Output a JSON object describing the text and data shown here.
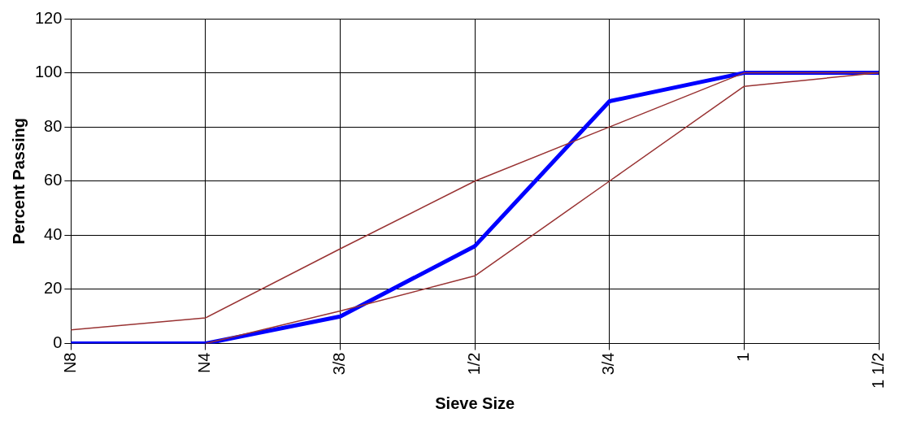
{
  "chart_data": {
    "type": "line",
    "xlabel": "Sieve Size",
    "ylabel": "Percent Passing",
    "categories": [
      "N8",
      "N4",
      "3/8",
      "1/2",
      "3/4",
      "1",
      "1 1/2"
    ],
    "series": [
      {
        "color": "#993333",
        "values": [
          5,
          9.5,
          35,
          60,
          80,
          100,
          100
        ]
      },
      {
        "color": "#993333",
        "values": [
          null,
          0,
          12,
          25,
          60,
          95,
          100
        ]
      },
      {
        "color": "#0000ff",
        "values": [
          0,
          0,
          10,
          36,
          89.5,
          100,
          100
        ]
      }
    ],
    "ylim": [
      0,
      120
    ],
    "yticks": [
      0,
      20,
      40,
      60,
      80,
      100,
      120
    ],
    "grid": true,
    "legend": false,
    "marker": "none",
    "line_style": "solid"
  }
}
